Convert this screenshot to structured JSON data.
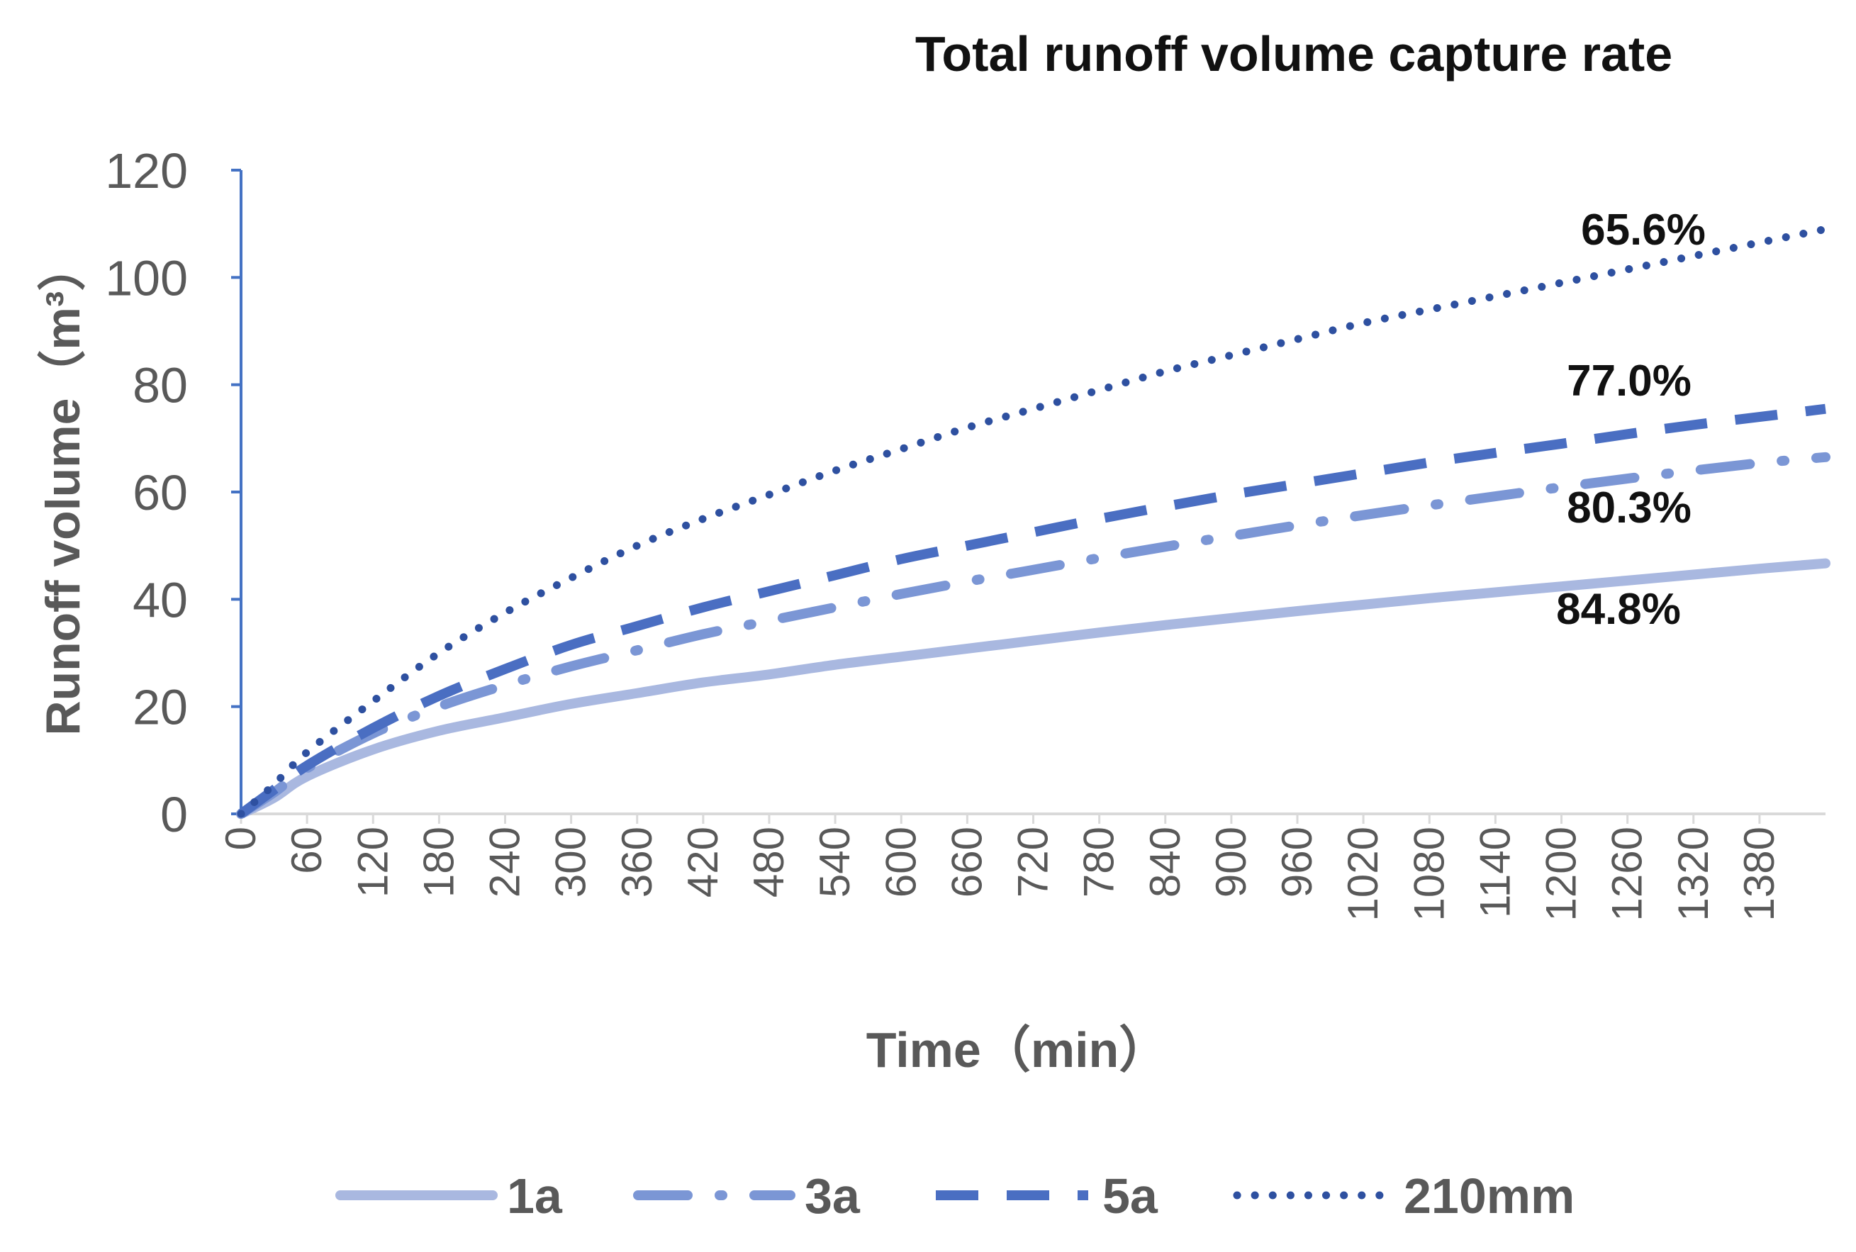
{
  "chart_data": {
    "type": "line",
    "title": "Total runoff volume capture rate",
    "xlabel": "Time（min）",
    "ylabel": "Runoff volume（m³）",
    "ylim": [
      0,
      120
    ],
    "xlim": [
      0,
      1440
    ],
    "yticks": [
      "0",
      "20",
      "40",
      "60",
      "80",
      "100",
      "120"
    ],
    "xticks": [
      "0",
      "60",
      "120",
      "180",
      "240",
      "300",
      "360",
      "420",
      "480",
      "540",
      "600",
      "660",
      "720",
      "780",
      "840",
      "900",
      "960",
      "1020",
      "1080",
      "1140",
      "1200",
      "1260",
      "1320",
      "1380"
    ],
    "grid": false,
    "legend_position": "bottom",
    "series": [
      {
        "name": "1a",
        "color": "#A9B8E0",
        "style": "solid",
        "x": [
          0,
          30,
          60,
          120,
          180,
          240,
          300,
          360,
          420,
          480,
          540,
          600,
          660,
          720,
          780,
          840,
          900,
          960,
          1020,
          1080,
          1140,
          1200,
          1260,
          1320,
          1380,
          1440
        ],
        "values": [
          0,
          3,
          7,
          12,
          15.5,
          18,
          20.5,
          22.5,
          24.5,
          26,
          27.8,
          29.3,
          30.8,
          32.3,
          33.8,
          35.2,
          36.5,
          37.8,
          39,
          40.2,
          41.3,
          42.4,
          43.5,
          44.6,
          45.7,
          46.7
        ]
      },
      {
        "name": "3a",
        "color": "#7B96D5",
        "style": "dashdot",
        "x": [
          0,
          30,
          60,
          120,
          180,
          240,
          300,
          360,
          420,
          480,
          540,
          600,
          660,
          720,
          780,
          840,
          900,
          960,
          1020,
          1080,
          1140,
          1200,
          1260,
          1320,
          1380,
          1440
        ],
        "values": [
          0,
          4,
          8.5,
          15,
          20,
          24,
          27.5,
          30.5,
          33.5,
          36,
          38.5,
          41,
          43.3,
          45.5,
          47.7,
          49.8,
          51.8,
          53.8,
          55.7,
          57.5,
          59.2,
          60.9,
          62.5,
          64,
          65.4,
          66.5
        ]
      },
      {
        "name": "5a",
        "color": "#4A6EC2",
        "style": "dash",
        "x": [
          0,
          30,
          60,
          120,
          180,
          240,
          300,
          360,
          420,
          480,
          540,
          600,
          660,
          720,
          780,
          840,
          900,
          960,
          1020,
          1080,
          1140,
          1200,
          1260,
          1320,
          1380,
          1440
        ],
        "values": [
          0,
          4.5,
          9,
          16,
          22,
          27,
          31.5,
          35,
          38.5,
          41.5,
          44.5,
          47.5,
          50,
          52.5,
          55,
          57.3,
          59.5,
          61.5,
          63.5,
          65.5,
          67.3,
          69,
          70.8,
          72.5,
          74,
          75.5
        ]
      },
      {
        "name": "210mm",
        "color": "#2E50A0",
        "style": "dot",
        "x": [
          0,
          30,
          60,
          120,
          180,
          240,
          300,
          360,
          420,
          480,
          540,
          600,
          660,
          720,
          780,
          840,
          900,
          960,
          1020,
          1080,
          1140,
          1200,
          1260,
          1320,
          1380,
          1440
        ],
        "values": [
          0,
          5.5,
          11.5,
          21,
          30,
          37.5,
          44,
          50,
          55,
          59.5,
          64,
          68,
          72,
          75.5,
          79,
          82.5,
          85.5,
          88.5,
          91.5,
          94,
          96.5,
          99,
          101.5,
          104,
          106.5,
          109
        ]
      }
    ],
    "annotations": [
      {
        "text": "65.6%",
        "series": "210mm"
      },
      {
        "text": "77.0%",
        "series": "5a"
      },
      {
        "text": "80.3%",
        "series": "3a"
      },
      {
        "text": "84.8%",
        "series": "1a"
      }
    ]
  }
}
